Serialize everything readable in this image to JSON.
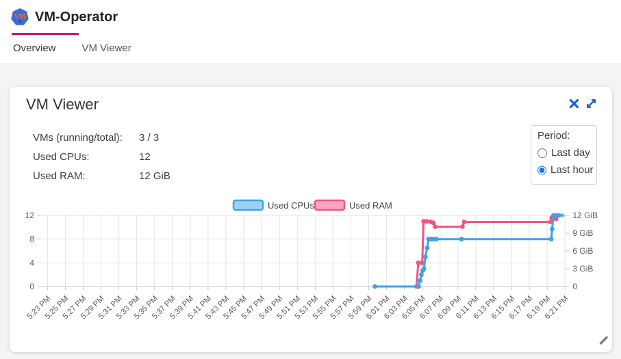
{
  "header": {
    "title": "VM-Operator",
    "logo_text": "VM"
  },
  "tabs": [
    {
      "label": "Overview",
      "active": true
    },
    {
      "label": "VM Viewer",
      "active": false
    }
  ],
  "card": {
    "title": "VM Viewer",
    "stats": [
      {
        "label": "VMs (running/total):",
        "value": "3 / 3"
      },
      {
        "label": "Used CPUs:",
        "value": "12"
      },
      {
        "label": "Used RAM:",
        "value": "12 GiB"
      }
    ],
    "period": {
      "label": "Period:",
      "options": [
        {
          "label": "Last day",
          "selected": false
        },
        {
          "label": "Last hour",
          "selected": true
        }
      ]
    },
    "icons": {
      "close": "close-icon",
      "expand": "open-in-full-icon",
      "resize": "resize-grip-icon"
    }
  },
  "colors": {
    "tab_indicator": "#d11368",
    "icon_blue": "#1464d2",
    "radio_selected": "#1a73e8",
    "cpu_line": "#3fa2e9",
    "cpu_legend_fill": "#9fd0f1",
    "ram_line": "#f2557f",
    "ram_legend_fill": "#f7a8be",
    "grid": "#e3e3e3",
    "axis": "#c9c9c9"
  },
  "chart_data": {
    "type": "line",
    "title": "",
    "x_unit": "minutes after 5:23 PM, ticks every 2 minutes",
    "x_ticks": [
      "5:23 PM",
      "5:25 PM",
      "5:27 PM",
      "5:29 PM",
      "5:31 PM",
      "5:33 PM",
      "5:35 PM",
      "5:37 PM",
      "5:39 PM",
      "5:41 PM",
      "5:43 PM",
      "5:45 PM",
      "5:47 PM",
      "5:49 PM",
      "5:51 PM",
      "5:53 PM",
      "5:55 PM",
      "5:57 PM",
      "5:59 PM",
      "6:01 PM",
      "6:03 PM",
      "6:05 PM",
      "6:07 PM",
      "6:09 PM",
      "6:11 PM",
      "6:13 PM",
      "6:15 PM",
      "6:17 PM",
      "6:19 PM",
      "6:21 PM"
    ],
    "left_axis": {
      "ticks": [
        0,
        4,
        8,
        12
      ],
      "range": [
        0,
        12
      ],
      "label": "CPUs"
    },
    "right_axis": {
      "values": [
        0,
        3,
        6,
        9,
        12
      ],
      "ticks": [
        "0",
        "3 GiB",
        "6 GiB",
        "9 GiB",
        "12 GiB"
      ],
      "range": [
        0,
        12
      ],
      "label": "RAM"
    },
    "grid": true,
    "legend_position": "top-center",
    "series": [
      {
        "name": "Used CPUs",
        "axis": "left",
        "color": "#3fa2e9",
        "fill": "#9fd0f1",
        "last_point_faded": true,
        "points": [
          [
            36.7,
            0
          ],
          [
            41.6,
            0
          ],
          [
            41.75,
            1
          ],
          [
            41.9,
            2
          ],
          [
            42.05,
            2.7
          ],
          [
            42.2,
            3
          ],
          [
            42.35,
            5
          ],
          [
            42.55,
            6.5
          ],
          [
            42.7,
            8
          ],
          [
            43.0,
            8
          ],
          [
            43.3,
            8
          ],
          [
            43.6,
            8
          ],
          [
            46.4,
            8
          ],
          [
            56.45,
            8
          ],
          [
            56.55,
            9.7
          ],
          [
            56.7,
            12
          ],
          [
            57.0,
            12
          ],
          [
            57.3,
            12
          ],
          [
            57.7,
            12
          ]
        ]
      },
      {
        "name": "Used RAM",
        "axis": "right",
        "color": "#f2557f",
        "fill": "#f7a8be",
        "last_point_faded": false,
        "points": [
          [
            41.35,
            0
          ],
          [
            41.55,
            4
          ],
          [
            42.0,
            4
          ],
          [
            42.15,
            11
          ],
          [
            42.5,
            11
          ],
          [
            42.95,
            10.9
          ],
          [
            43.25,
            10.75
          ],
          [
            43.45,
            10.1
          ],
          [
            46.5,
            10.1
          ],
          [
            46.7,
            10.9
          ],
          [
            56.35,
            10.9
          ],
          [
            56.5,
            11.6
          ],
          [
            57.0,
            11.4
          ]
        ]
      }
    ]
  }
}
